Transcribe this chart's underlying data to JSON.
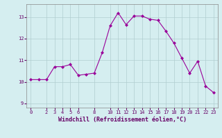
{
  "x": [
    0,
    1,
    2,
    3,
    4,
    5,
    6,
    7,
    8,
    9,
    10,
    11,
    12,
    13,
    14,
    15,
    16,
    17,
    18,
    19,
    20,
    21,
    22,
    23
  ],
  "y": [
    10.1,
    10.1,
    10.1,
    10.7,
    10.7,
    10.8,
    10.3,
    10.35,
    10.4,
    11.35,
    12.6,
    13.2,
    12.65,
    13.05,
    13.05,
    12.9,
    12.85,
    12.35,
    11.8,
    11.1,
    10.4,
    10.95,
    9.8,
    9.5
  ],
  "line_color": "#990099",
  "marker": "D",
  "marker_size": 2.0,
  "bg_color": "#d5eef0",
  "grid_color": "#b0cdd0",
  "xlabel": "Windchill (Refroidissement éolien,°C)",
  "xlabel_color": "#660066",
  "tick_color": "#660066",
  "ylim": [
    8.8,
    13.6
  ],
  "xlim": [
    -0.5,
    23.5
  ],
  "yticks": [
    9,
    10,
    11,
    12,
    13
  ],
  "xticks": [
    0,
    2,
    3,
    4,
    5,
    6,
    8,
    10,
    11,
    12,
    13,
    14,
    15,
    16,
    17,
    18,
    19,
    20,
    21,
    22,
    23
  ],
  "linewidth": 0.8,
  "tick_fontsize": 5.0,
  "xlabel_fontsize": 6.0
}
